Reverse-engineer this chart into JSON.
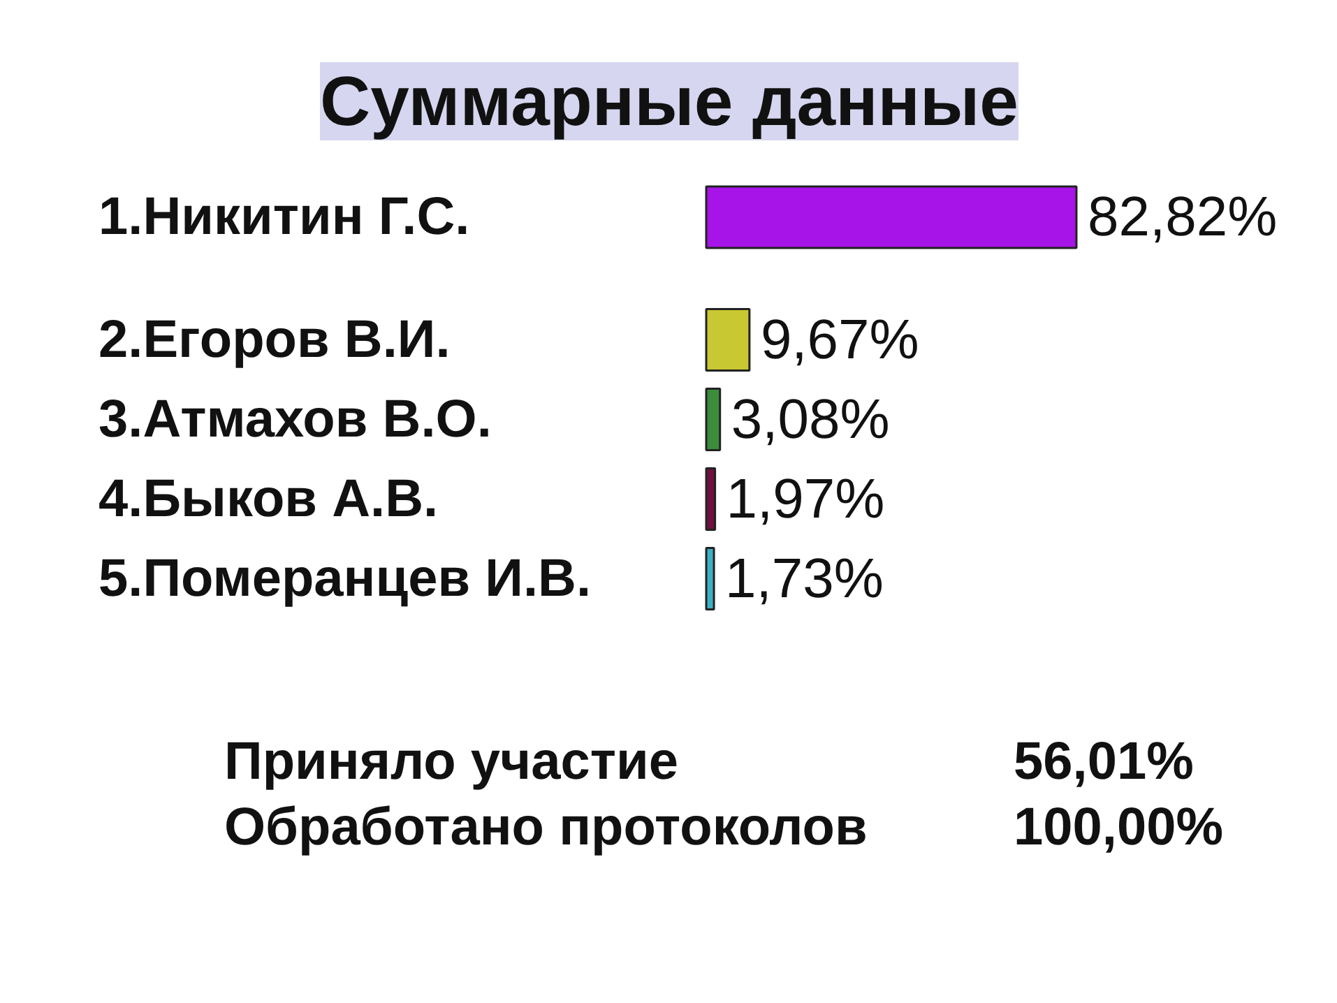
{
  "chart_data": {
    "type": "bar",
    "orientation": "horizontal",
    "title": "Суммарные данные",
    "categories": [
      "1.Никитин Г.С.",
      "2.Егоров В.И.",
      "3.Атмахов В.О.",
      "4.Быков А.В.",
      "5.Померанцев И.В."
    ],
    "values": [
      82.82,
      9.67,
      3.08,
      1.97,
      1.73
    ],
    "colors": [
      "#a614e8",
      "#c8c832",
      "#3c8c3c",
      "#701040",
      "#3cb0c4"
    ],
    "value_labels": [
      "82,82%",
      "9,67%",
      "3,08%",
      "1,97%",
      "1,73%"
    ],
    "tick_labels": "y",
    "annotations": [
      "Приняло участие",
      "56,01%",
      "Обработано протоколов",
      "100,00%"
    ]
  }
}
